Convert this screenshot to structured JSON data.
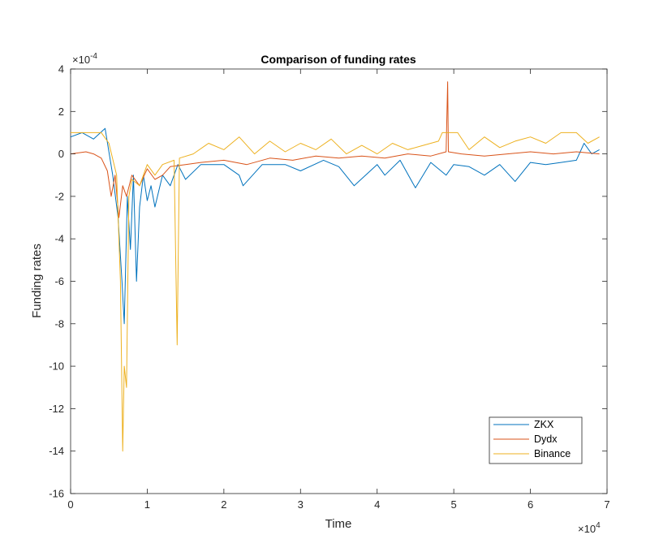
{
  "chart_data": {
    "type": "line",
    "title": "Comparison of funding rates",
    "xlabel": "Time",
    "ylabel": "Funding rates",
    "x_exponent_label": "×10",
    "x_exponent_power": "4",
    "y_exponent_label": "×10",
    "y_exponent_power": "-4",
    "xlim": [
      0,
      70000
    ],
    "ylim": [
      -0.0016,
      0.0004
    ],
    "x_ticks": [
      0,
      10000,
      20000,
      30000,
      40000,
      50000,
      60000,
      70000
    ],
    "x_tick_labels": [
      "0",
      "1",
      "2",
      "3",
      "4",
      "5",
      "6",
      "7"
    ],
    "y_ticks": [
      -0.0016,
      -0.0014,
      -0.0012,
      -0.001,
      -0.0008,
      -0.0006,
      -0.0004,
      -0.0002,
      0,
      0.0002,
      0.0004
    ],
    "y_tick_labels": [
      "-16",
      "-14",
      "-12",
      "-10",
      "-8",
      "-6",
      "-4",
      "-2",
      "0",
      "2",
      "4"
    ],
    "legend_position": "bottom-right",
    "series": [
      {
        "name": "ZKX",
        "color": "#0072BD",
        "points": [
          [
            0,
            8e-05
          ],
          [
            1500,
            0.0001
          ],
          [
            3000,
            7e-05
          ],
          [
            4500,
            0.00012
          ],
          [
            5500,
            -0.0001
          ],
          [
            6200,
            -0.0003
          ],
          [
            6700,
            -0.0006
          ],
          [
            7000,
            -0.0008
          ],
          [
            7400,
            -0.0002
          ],
          [
            7800,
            -0.00045
          ],
          [
            8200,
            -0.0001
          ],
          [
            8600,
            -0.0006
          ],
          [
            9000,
            -0.00025
          ],
          [
            9500,
            -0.0001
          ],
          [
            10000,
            -0.00022
          ],
          [
            10500,
            -0.00015
          ],
          [
            11000,
            -0.00025
          ],
          [
            12000,
            -0.0001
          ],
          [
            13000,
            -0.00015
          ],
          [
            14000,
            -5e-05
          ],
          [
            15000,
            -0.00012
          ],
          [
            17000,
            -5e-05
          ],
          [
            20000,
            -5e-05
          ],
          [
            22000,
            -0.0001
          ],
          [
            22500,
            -0.00015
          ],
          [
            25000,
            -5e-05
          ],
          [
            28000,
            -5e-05
          ],
          [
            30000,
            -8e-05
          ],
          [
            33000,
            -3e-05
          ],
          [
            35000,
            -6e-05
          ],
          [
            37000,
            -0.00015
          ],
          [
            40000,
            -5e-05
          ],
          [
            41000,
            -0.0001
          ],
          [
            43000,
            -3e-05
          ],
          [
            45000,
            -0.00016
          ],
          [
            47000,
            -4e-05
          ],
          [
            49000,
            -0.0001
          ],
          [
            50000,
            -5e-05
          ],
          [
            52000,
            -6e-05
          ],
          [
            54000,
            -0.0001
          ],
          [
            56000,
            -5e-05
          ],
          [
            58000,
            -0.00013
          ],
          [
            60000,
            -4e-05
          ],
          [
            62000,
            -5e-05
          ],
          [
            64000,
            -4e-05
          ],
          [
            66000,
            -3e-05
          ],
          [
            67000,
            5e-05
          ],
          [
            68000,
            0.0
          ],
          [
            69000,
            2e-05
          ]
        ]
      },
      {
        "name": "Dydx",
        "color": "#D95319",
        "points": [
          [
            0,
            0.0
          ],
          [
            2000,
            1e-05
          ],
          [
            3000,
            0.0
          ],
          [
            4000,
            -2e-05
          ],
          [
            4800,
            -8e-05
          ],
          [
            5300,
            -0.0002
          ],
          [
            5800,
            -0.0001
          ],
          [
            6300,
            -0.0003
          ],
          [
            6800,
            -0.00015
          ],
          [
            7300,
            -0.0002
          ],
          [
            8000,
            -0.0001
          ],
          [
            9000,
            -0.00015
          ],
          [
            10000,
            -7e-05
          ],
          [
            11000,
            -0.00012
          ],
          [
            12000,
            -0.0001
          ],
          [
            13000,
            -6e-05
          ],
          [
            15000,
            -5e-05
          ],
          [
            17000,
            -4e-05
          ],
          [
            20000,
            -3e-05
          ],
          [
            23000,
            -5e-05
          ],
          [
            26000,
            -2e-05
          ],
          [
            29000,
            -3e-05
          ],
          [
            32000,
            -1e-05
          ],
          [
            35000,
            -2e-05
          ],
          [
            38000,
            -1e-05
          ],
          [
            41000,
            -2e-05
          ],
          [
            44000,
            0.0
          ],
          [
            47000,
            -1e-05
          ],
          [
            49000,
            1e-05
          ],
          [
            49200,
            0.00034
          ],
          [
            49300,
            1e-05
          ],
          [
            51000,
            0.0
          ],
          [
            54000,
            -1e-05
          ],
          [
            57000,
            0.0
          ],
          [
            60000,
            1e-05
          ],
          [
            63000,
            0.0
          ],
          [
            66000,
            1e-05
          ],
          [
            69000,
            0.0
          ]
        ]
      },
      {
        "name": "Binance",
        "color": "#EDB120",
        "points": [
          [
            0,
            0.0001
          ],
          [
            2000,
            0.0001
          ],
          [
            4000,
            0.0001
          ],
          [
            5000,
            5e-05
          ],
          [
            6000,
            -0.0001
          ],
          [
            6500,
            -0.0006
          ],
          [
            6800,
            -0.0014
          ],
          [
            7000,
            -0.001
          ],
          [
            7300,
            -0.0011
          ],
          [
            7600,
            -0.0002
          ],
          [
            8000,
            -0.00012
          ],
          [
            9000,
            -0.00015
          ],
          [
            10000,
            -5e-05
          ],
          [
            11000,
            -0.0001
          ],
          [
            12000,
            -5e-05
          ],
          [
            13500,
            -3e-05
          ],
          [
            13900,
            -0.0009
          ],
          [
            14200,
            -2e-05
          ],
          [
            16000,
            0.0
          ],
          [
            18000,
            5e-05
          ],
          [
            20000,
            2e-05
          ],
          [
            22000,
            8e-05
          ],
          [
            24000,
            0.0
          ],
          [
            26000,
            6e-05
          ],
          [
            28000,
            1e-05
          ],
          [
            30000,
            5e-05
          ],
          [
            32000,
            2e-05
          ],
          [
            34000,
            7e-05
          ],
          [
            36000,
            0.0
          ],
          [
            38000,
            4e-05
          ],
          [
            40000,
            0.0
          ],
          [
            42000,
            5e-05
          ],
          [
            44000,
            2e-05
          ],
          [
            46000,
            4e-05
          ],
          [
            48000,
            6e-05
          ],
          [
            48500,
            0.0001
          ],
          [
            50500,
            0.0001
          ],
          [
            52000,
            2e-05
          ],
          [
            54000,
            8e-05
          ],
          [
            56000,
            3e-05
          ],
          [
            58000,
            6e-05
          ],
          [
            60000,
            8e-05
          ],
          [
            62000,
            5e-05
          ],
          [
            64000,
            0.0001
          ],
          [
            66000,
            0.0001
          ],
          [
            67500,
            5e-05
          ],
          [
            69000,
            8e-05
          ]
        ]
      }
    ]
  }
}
